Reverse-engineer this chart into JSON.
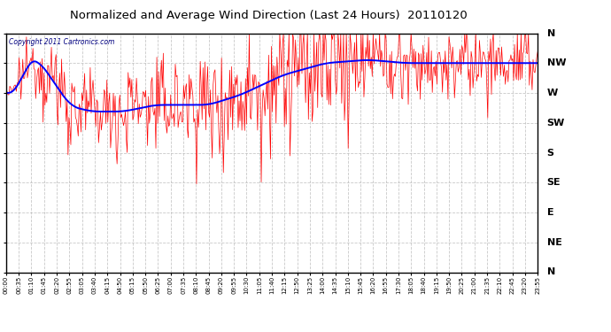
{
  "title": "Normalized and Average Wind Direction (Last 24 Hours)  20110120",
  "copyright": "Copyright 2011 Cartronics.com",
  "bg_color": "#ffffff",
  "plot_bg_color": "#ffffff",
  "grid_color": "#bbbbbb",
  "red_line_color": "#ff0000",
  "blue_line_color": "#0000ff",
  "title_color": "#000000",
  "copyright_color": "#000080",
  "y_labels": [
    "N",
    "NW",
    "W",
    "SW",
    "S",
    "SE",
    "E",
    "NE",
    "N"
  ],
  "y_values": [
    360,
    315,
    270,
    225,
    180,
    135,
    90,
    45,
    0
  ],
  "x_tick_labels": [
    "00:00",
    "00:35",
    "01:10",
    "01:45",
    "02:20",
    "02:55",
    "03:05",
    "03:40",
    "04:15",
    "04:50",
    "05:15",
    "05:50",
    "06:25",
    "07:00",
    "07:35",
    "08:10",
    "08:45",
    "09:20",
    "09:55",
    "10:30",
    "11:05",
    "11:40",
    "12:15",
    "12:50",
    "13:25",
    "14:00",
    "14:35",
    "15:10",
    "15:45",
    "16:20",
    "16:55",
    "17:30",
    "18:05",
    "18:40",
    "19:15",
    "19:50",
    "20:25",
    "21:00",
    "21:35",
    "22:10",
    "22:45",
    "23:20",
    "23:55"
  ],
  "ylim": [
    0,
    360
  ],
  "n_points": 576,
  "seed": 12345
}
